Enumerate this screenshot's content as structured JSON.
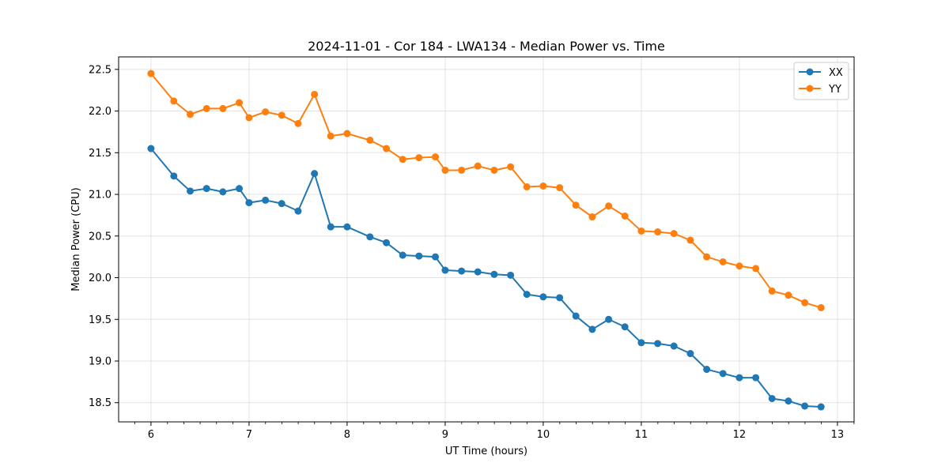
{
  "chart_data": {
    "type": "line",
    "title": "2024-11-01 - Cor 184 - LWA134 - Median Power vs. Time",
    "xlabel": "UT Time (hours)",
    "ylabel": "Median Power (CPU)",
    "xlim": [
      5.67,
      13.17
    ],
    "ylim": [
      18.27,
      22.65
    ],
    "grid": true,
    "legend_position": "top-right",
    "x_ticks": [
      6,
      7,
      8,
      9,
      10,
      11,
      12,
      13
    ],
    "x_tick_labels": [
      "6",
      "7",
      "8",
      "9",
      "10",
      "11",
      "12",
      "13"
    ],
    "x_minor_step": 0.1667,
    "y_ticks": [
      18.5,
      19.0,
      19.5,
      20.0,
      20.5,
      21.0,
      21.5,
      22.0,
      22.5
    ],
    "y_tick_labels": [
      "18.5",
      "19.0",
      "19.5",
      "20.0",
      "20.5",
      "21.0",
      "21.5",
      "22.0",
      "22.5"
    ],
    "x": [
      6.0,
      6.233,
      6.4,
      6.567,
      6.733,
      6.9,
      7.0,
      7.167,
      7.333,
      7.5,
      7.667,
      7.833,
      8.0,
      8.233,
      8.4,
      8.567,
      8.733,
      8.9,
      9.0,
      9.167,
      9.333,
      9.5,
      9.667,
      9.833,
      10.0,
      10.167,
      10.333,
      10.5,
      10.667,
      10.833,
      11.0,
      11.167,
      11.333,
      11.5,
      11.667,
      11.833,
      12.0,
      12.167,
      12.333,
      12.5,
      12.667,
      12.833
    ],
    "series": [
      {
        "name": "XX",
        "color": "#1f77b4",
        "values": [
          21.55,
          21.22,
          21.04,
          21.07,
          21.03,
          21.07,
          20.9,
          20.93,
          20.89,
          20.8,
          21.25,
          20.61,
          20.61,
          20.49,
          20.42,
          20.27,
          20.26,
          20.25,
          20.09,
          20.08,
          20.07,
          20.04,
          20.03,
          19.8,
          19.77,
          19.76,
          19.54,
          19.38,
          19.5,
          19.41,
          19.22,
          19.21,
          19.18,
          19.09,
          18.9,
          18.85,
          18.8,
          18.8,
          18.55,
          18.52,
          18.46,
          18.45
        ]
      },
      {
        "name": "YY",
        "color": "#ff7f0e",
        "values": [
          22.45,
          22.12,
          21.96,
          22.03,
          22.03,
          22.1,
          21.92,
          21.99,
          21.95,
          21.85,
          22.2,
          21.7,
          21.73,
          21.65,
          21.55,
          21.42,
          21.44,
          21.45,
          21.29,
          21.29,
          21.34,
          21.29,
          21.33,
          21.09,
          21.1,
          21.08,
          20.87,
          20.73,
          20.86,
          20.74,
          20.56,
          20.55,
          20.53,
          20.45,
          20.25,
          20.19,
          20.14,
          20.11,
          19.84,
          19.79,
          19.7,
          19.64
        ]
      }
    ]
  }
}
